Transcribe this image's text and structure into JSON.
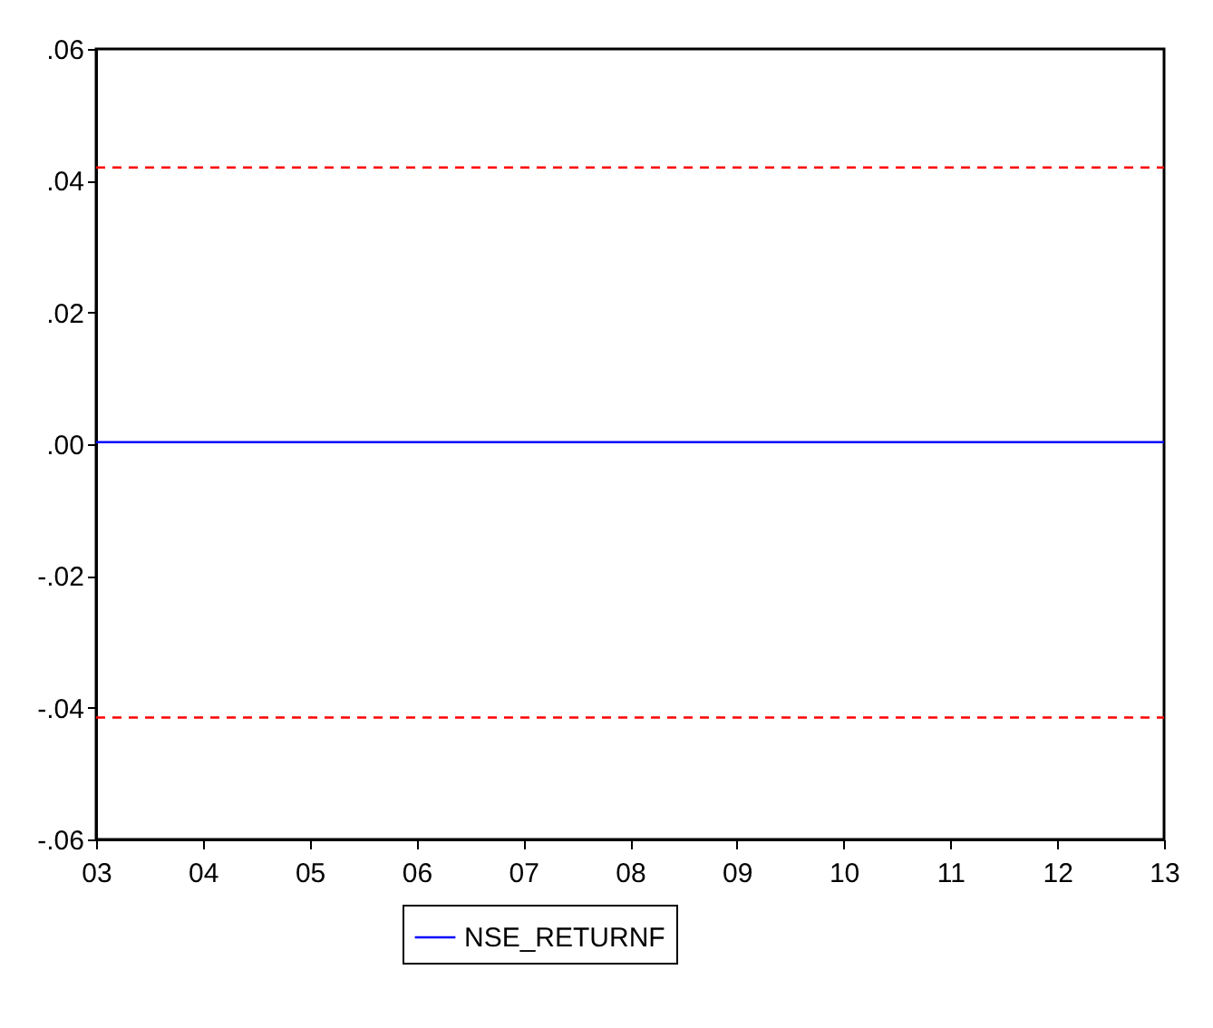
{
  "chart_data": {
    "type": "line",
    "x": [
      2003,
      2013
    ],
    "series": [
      {
        "name": "NSE_RETURNF",
        "color": "#0000ff",
        "values": [
          0.0003,
          0.0003
        ],
        "line_style": "solid"
      },
      {
        "color": "#ff0000",
        "values": [
          0.042,
          0.042
        ],
        "line_style": "dashed"
      },
      {
        "color": "#ff0000",
        "values": [
          -0.0415,
          -0.0415
        ],
        "line_style": "dashed"
      }
    ],
    "xlim": [
      2003,
      2013
    ],
    "xticks": [
      {
        "value": 2003,
        "label": "03"
      },
      {
        "value": 2004,
        "label": "04"
      },
      {
        "value": 2005,
        "label": "05"
      },
      {
        "value": 2006,
        "label": "06"
      },
      {
        "value": 2007,
        "label": "07"
      },
      {
        "value": 2008,
        "label": "08"
      },
      {
        "value": 2009,
        "label": "09"
      },
      {
        "value": 2010,
        "label": "10"
      },
      {
        "value": 2011,
        "label": "11"
      },
      {
        "value": 2012,
        "label": "12"
      },
      {
        "value": 2013,
        "label": "13"
      }
    ],
    "ylim": [
      -0.06,
      0.06
    ],
    "yticks": [
      {
        "value": -0.06,
        "label": "-.06"
      },
      {
        "value": -0.04,
        "label": "-.04"
      },
      {
        "value": -0.02,
        "label": "-.02"
      },
      {
        "value": 0,
        "label": ".00"
      },
      {
        "value": 0.02,
        "label": ".02"
      },
      {
        "value": 0.04,
        "label": ".04"
      },
      {
        "value": 0.06,
        "label": ".06"
      }
    ],
    "grid": false,
    "legend": "bottom",
    "marker": "none"
  }
}
